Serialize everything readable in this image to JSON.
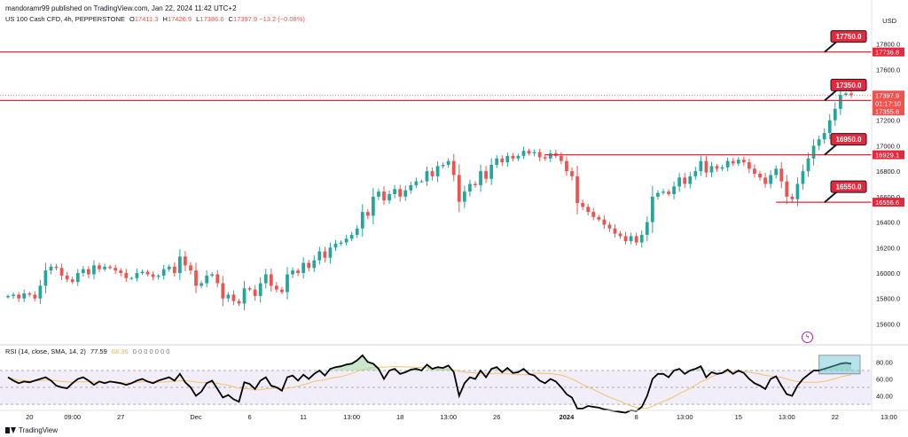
{
  "header": {
    "published": "mandoramr99 published on TradingView.com, Jan 22, 2024 11:42 UTC+2"
  },
  "symbol": {
    "name": "US 100 Cash CFD, 4h, PEPPERSTONE",
    "open_label": "O",
    "open": "17411.3",
    "high_label": "H",
    "high": "17426.9",
    "low_label": "L",
    "low": "17386.6",
    "close_label": "C",
    "close": "17397.9",
    "change": "−13.2 (−0.08%)"
  },
  "currency": "USD",
  "rsi_header": {
    "name": "RSI (14, close, SMA, 14, 2)",
    "value": "77.59",
    "sma": "68.36",
    "extras": "0 0 0 0 0 0 0"
  },
  "footer": {
    "brand": "TradingView"
  },
  "colors": {
    "up": "#26a69a",
    "down": "#ef5350",
    "level_line": "#e8263c",
    "label_bg": "#e8263c",
    "rsi": "#000000",
    "rsi_ma": "#f5c26b",
    "rsi_band": "#ede7f6",
    "highlight": "#5fc3d6"
  },
  "chart_data": [
    {
      "type": "candlestick",
      "title": "US 100 Cash CFD, 4h, PEPPERSTONE",
      "ylim": [
        15450,
        17950
      ],
      "y_ticks": [
        15600,
        15800,
        16000,
        16200,
        16400,
        16600,
        16800,
        17000,
        17200,
        17400,
        17600,
        17800
      ],
      "y_tick_labels": [
        "15600.0",
        "15800.0",
        "16000.0",
        "16200.0",
        "16400.0",
        "16600.0",
        "16800.0",
        "17000.0",
        "17200.0",
        "17400.0",
        "17600.0",
        "17800.0"
      ],
      "x_tick_labels": [
        "20",
        "09:00",
        "27",
        "Dec",
        "6",
        "11",
        "13:00",
        "18",
        "13:00",
        "26",
        "2024",
        "8",
        "13:00",
        "15",
        "13:00",
        "22",
        "13:00"
      ],
      "x_tick_index": [
        4,
        12,
        21,
        35,
        45,
        55,
        64,
        73,
        82,
        91,
        104,
        117,
        126,
        136,
        145,
        154,
        164
      ],
      "close": [
        15820,
        15830,
        15800,
        15840,
        15830,
        15800,
        15900,
        16020,
        16050,
        16040,
        15980,
        15950,
        15930,
        16000,
        16030,
        15990,
        16060,
        16030,
        16050,
        16040,
        16020,
        16000,
        15960,
        15960,
        16000,
        16010,
        15990,
        15970,
        15980,
        16030,
        16050,
        16000,
        16130,
        16060,
        16020,
        15900,
        15920,
        15980,
        15990,
        15920,
        15800,
        15830,
        15780,
        15760,
        15880,
        15870,
        15820,
        15920,
        15990,
        15900,
        15870,
        15850,
        15990,
        16020,
        16000,
        16080,
        16040,
        16100,
        16170,
        16120,
        16200,
        16230,
        16240,
        16270,
        16300,
        16350,
        16480,
        16450,
        16600,
        16640,
        16570,
        16620,
        16660,
        16600,
        16650,
        16690,
        16720,
        16720,
        16800,
        16760,
        16840,
        16850,
        16880,
        16770,
        16560,
        16640,
        16700,
        16690,
        16800,
        16740,
        16850,
        16900,
        16870,
        16920,
        16900,
        16920,
        16960,
        16940,
        16950,
        16910,
        16900,
        16940,
        16920,
        16880,
        16800,
        16760,
        16550,
        16520,
        16480,
        16440,
        16420,
        16380,
        16350,
        16310,
        16290,
        16250,
        16290,
        16240,
        16300,
        16400,
        16600,
        16630,
        16640,
        16620,
        16680,
        16750,
        16700,
        16760,
        16800,
        16880,
        16790,
        16840,
        16820,
        16830,
        16880,
        16860,
        16890,
        16870,
        16820,
        16780,
        16750,
        16700,
        16770,
        16820,
        16720,
        16600,
        16580,
        16700,
        16800,
        16900,
        17000,
        17050,
        17100,
        17200,
        17290,
        17400,
        17411,
        17398
      ]
    },
    {
      "type": "line",
      "title": "RSI (14, close, SMA, 14, 2)",
      "ylim": [
        0,
        100
      ],
      "y_ticks": [
        40,
        60,
        80
      ],
      "y_tick_labels": [
        "40.00",
        "60.00",
        "80.00"
      ],
      "bands": [
        30,
        50,
        70
      ],
      "rsi": [
        62,
        58,
        55,
        57,
        56,
        58,
        60,
        62,
        58,
        52,
        50,
        49,
        55,
        60,
        62,
        58,
        53,
        57,
        55,
        57,
        56,
        55,
        53,
        55,
        58,
        60,
        57,
        55,
        58,
        60,
        62,
        58,
        66,
        56,
        50,
        40,
        45,
        55,
        58,
        48,
        38,
        41,
        36,
        33,
        56,
        54,
        48,
        58,
        62,
        52,
        50,
        46,
        62,
        64,
        58,
        65,
        60,
        66,
        70,
        64,
        72,
        74,
        75,
        77,
        78,
        82,
        88,
        80,
        78,
        72,
        60,
        70,
        72,
        66,
        68,
        71,
        72,
        70,
        77,
        72,
        74,
        73,
        76,
        68,
        40,
        55,
        62,
        60,
        70,
        62,
        72,
        74,
        68,
        73,
        67,
        68,
        72,
        66,
        64,
        58,
        55,
        60,
        57,
        50,
        42,
        38,
        25,
        25,
        28,
        27,
        26,
        24,
        23,
        22,
        21,
        20,
        23,
        22,
        27,
        40,
        60,
        66,
        66,
        62,
        70,
        72,
        66,
        70,
        72,
        75,
        62,
        68,
        66,
        67,
        71,
        66,
        70,
        67,
        60,
        55,
        52,
        48,
        60,
        63,
        52,
        42,
        40,
        52,
        60,
        65,
        70,
        70,
        72,
        74,
        76,
        78,
        79,
        78
      ]
    }
  ],
  "price_levels": [
    {
      "tag": "17750.0",
      "value": 17736.8,
      "axis_label": "17736.8"
    },
    {
      "tag": "17350.0",
      "value": 17355.6,
      "axis_label": "17355.6"
    },
    {
      "tag": "16950.0",
      "value": 16929.1,
      "axis_label": "16929.1"
    },
    {
      "tag": "16550.0",
      "value": 16556.6,
      "axis_label": "16556.6"
    }
  ],
  "current_price": {
    "label": "17397.9",
    "countdown": "01:17:10",
    "extra": "17355.6"
  }
}
